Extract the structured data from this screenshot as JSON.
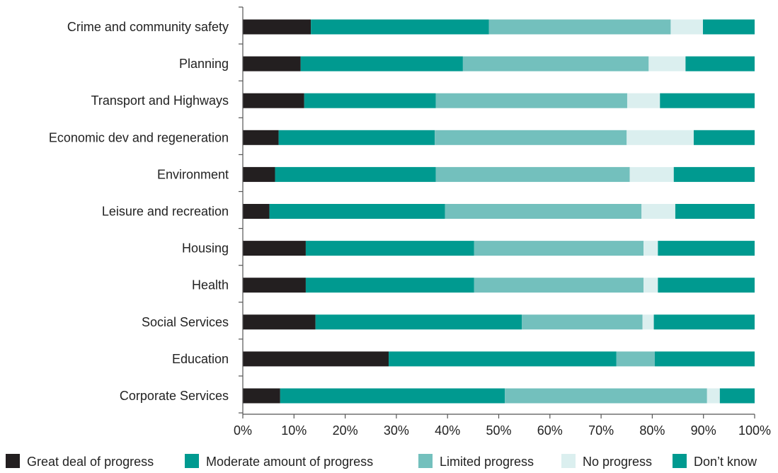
{
  "chart_data": {
    "type": "bar",
    "orientation": "horizontal",
    "stacked": true,
    "title": "",
    "xlabel": "",
    "ylabel": "",
    "xlim": [
      0,
      100
    ],
    "grid": false,
    "legend_position": "bottom",
    "categories": [
      "Crime and community safety",
      "Planning",
      "Transport and Highways",
      "Economic dev and regeneration",
      "Environment",
      "Leisure and recreation",
      "Housing",
      "Health",
      "Social Services",
      "Education",
      "Corporate Services"
    ],
    "series": [
      {
        "name": "Great deal of progress",
        "color": "#231f20",
        "values": [
          13.3,
          11.3,
          12.0,
          7.0,
          6.3,
          5.2,
          12.3,
          12.3,
          14.2,
          28.5,
          7.3
        ]
      },
      {
        "name": "Moderate amount of progress",
        "color": "#009a90",
        "values": [
          34.8,
          31.7,
          25.7,
          30.5,
          31.4,
          34.3,
          32.9,
          32.9,
          40.3,
          44.5,
          43.9
        ]
      },
      {
        "name": "Limited progress",
        "color": "#73c0bd",
        "values": [
          35.5,
          36.3,
          37.4,
          37.5,
          37.9,
          38.4,
          33.1,
          33.1,
          23.6,
          7.5,
          39.5
        ]
      },
      {
        "name": "No progress",
        "color": "#dbefef",
        "values": [
          6.3,
          7.2,
          6.4,
          13.1,
          8.6,
          6.6,
          2.8,
          2.8,
          2.2,
          0.0,
          2.5
        ]
      },
      {
        "name": "Don’t know",
        "color": "#009a90",
        "values": [
          10.1,
          13.5,
          18.5,
          11.9,
          15.8,
          15.5,
          18.9,
          18.9,
          19.7,
          19.5,
          6.8
        ]
      }
    ],
    "tick_labels": [
      "0%",
      "10%",
      "20%",
      "30%",
      "40%",
      "50%",
      "60%",
      "70%",
      "80%",
      "90%",
      "100%"
    ]
  }
}
